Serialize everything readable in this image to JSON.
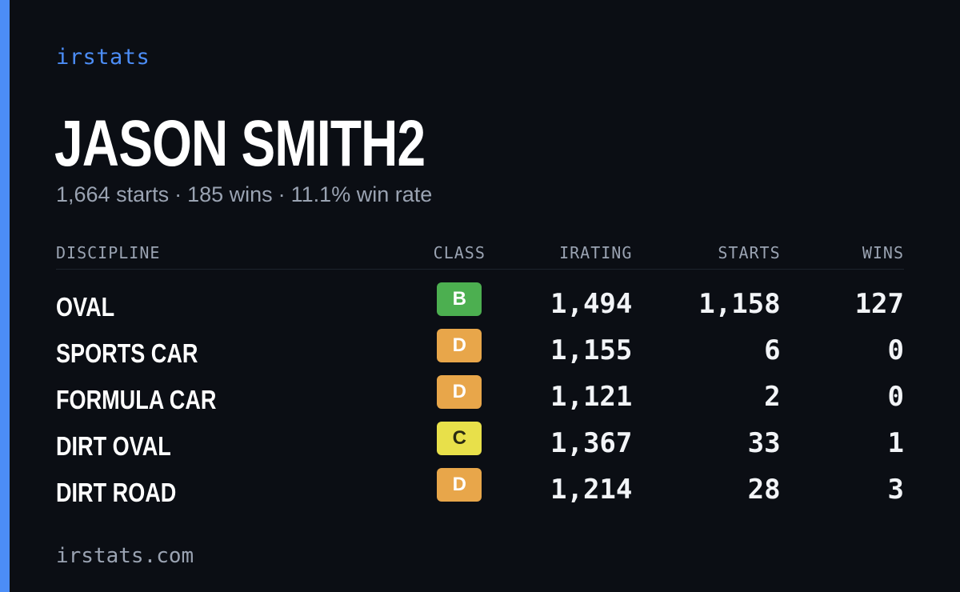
{
  "brand": "irstats",
  "driver": {
    "name": "JASON SMITH2",
    "starts": "1,664 starts",
    "wins": "185 wins",
    "win_rate": "11.1% win rate",
    "separator": "·"
  },
  "table": {
    "headers": {
      "discipline": "DISCIPLINE",
      "class": "CLASS",
      "irating": "IRATING",
      "starts": "STARTS",
      "wins": "WINS"
    },
    "rows": [
      {
        "discipline": "OVAL",
        "class": "B",
        "class_color": "#4caf50",
        "irating": "1,494",
        "starts": "1,158",
        "wins": "127"
      },
      {
        "discipline": "SPORTS CAR",
        "class": "D",
        "class_color": "#e8a64a",
        "irating": "1,155",
        "starts": "6",
        "wins": "0"
      },
      {
        "discipline": "FORMULA CAR",
        "class": "D",
        "class_color": "#e8a64a",
        "irating": "1,121",
        "starts": "2",
        "wins": "0"
      },
      {
        "discipline": "DIRT OVAL",
        "class": "C",
        "class_color": "#e8e04a",
        "irating": "1,367",
        "starts": "33",
        "wins": "1"
      },
      {
        "discipline": "DIRT ROAD",
        "class": "D",
        "class_color": "#e8a64a",
        "irating": "1,214",
        "starts": "28",
        "wins": "3"
      }
    ]
  },
  "footer": "irstats.com",
  "colors": {
    "accent": "#4c8df6",
    "background": "#0b0e14",
    "muted_text": "#9aa3b2"
  }
}
